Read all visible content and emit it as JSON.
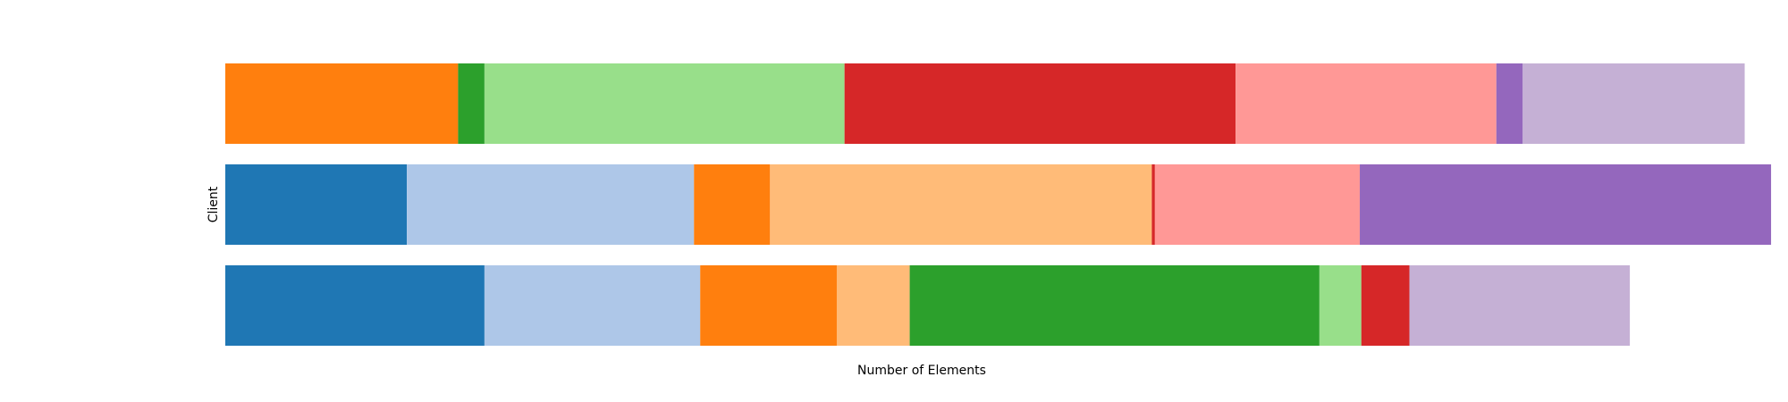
{
  "chart_data": {
    "type": "bar",
    "orientation": "horizontal",
    "stacked": true,
    "xlabel": "Number of Elements",
    "ylabel": "Client",
    "title": "",
    "xlim": [
      0,
      1000
    ],
    "grid": false,
    "legend": "none",
    "axes_visible": false,
    "segment_palette": [
      "#1f77b4",
      "#aec7e8",
      "#ff7f0e",
      "#ffbb78",
      "#2ca02c",
      "#98df8a",
      "#d62728",
      "#ff9896",
      "#9467bd",
      "#c5b0d5"
    ],
    "rows": [
      {
        "segments": [
          0,
          0,
          150,
          0,
          17,
          232,
          252,
          168,
          17,
          143
        ]
      },
      {
        "segments": [
          117,
          185,
          49,
          246,
          0,
          0,
          2,
          132,
          265,
          0
        ]
      },
      {
        "segments": [
          167,
          139,
          88,
          47,
          264,
          27,
          31,
          0,
          0,
          142
        ]
      }
    ]
  }
}
